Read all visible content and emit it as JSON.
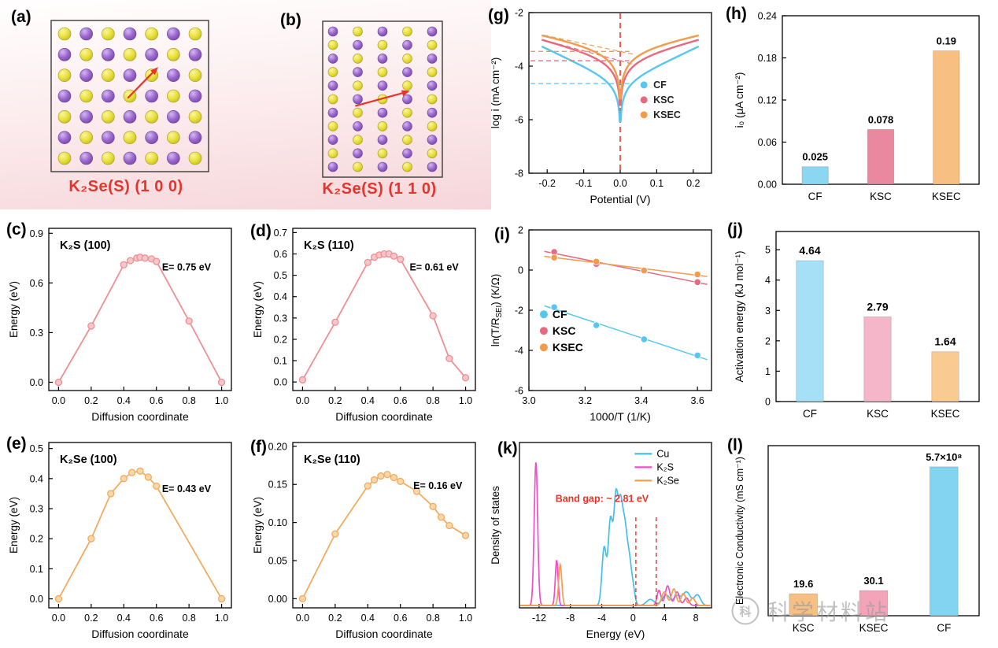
{
  "colors": {
    "arrow": "#e8332a",
    "accent_red": "#ee3326",
    "blue": "#58c7f0",
    "pink": "#e56a80",
    "orange": "#f29b4d",
    "magenta": "#f14fc3"
  },
  "watermark": {
    "text": "科学材料站",
    "logo_char": "科"
  },
  "panels": {
    "a": {
      "tag": "(a)",
      "caption": "K₂Se(S) (1 0 0)",
      "lattice": {
        "rows": 7,
        "cols": 7,
        "corner": "yellow",
        "arrow": [
          3.1,
          2.9,
          1.6,
          4.3
        ]
      }
    },
    "b": {
      "tag": "(b)",
      "caption": "K₂Se(S) (1 1 0)",
      "lattice": {
        "rows": 11,
        "cols": 5,
        "corner": "purple",
        "arrow": [
          5.5,
          0.9,
          4.4,
          3.1
        ]
      }
    },
    "c": {
      "tag": "(c)"
    },
    "d": {
      "tag": "(d)"
    },
    "e": {
      "tag": "(e)"
    },
    "f": {
      "tag": "(f)"
    },
    "g": {
      "tag": "(g)"
    },
    "h": {
      "tag": "(h)"
    },
    "i": {
      "tag": "(i)"
    },
    "j": {
      "tag": "(j)"
    },
    "k": {
      "tag": "(k)"
    },
    "l": {
      "tag": "(l)"
    }
  },
  "chart_data": [
    {
      "id": "c",
      "type": "line",
      "title": "K₂S (100)",
      "annotation": "E= 0.75 eV",
      "xlabel": "Diffusion coordinate",
      "ylabel": "Energy (eV)",
      "xlim": [
        -0.06,
        1.06
      ],
      "ylim": [
        -0.05,
        0.93
      ],
      "xticks": [
        0,
        0.2,
        0.4,
        0.6,
        0.8,
        1
      ],
      "yticks": [
        0,
        0.3,
        0.6,
        0.9
      ],
      "xfmt": 1,
      "yfmt": 1,
      "color": "#ee8f94",
      "point_fill": "#f8c6c8",
      "ann_pos": [
        0.62,
        0.26
      ],
      "x": [
        0,
        0.2,
        0.4,
        0.44,
        0.48,
        0.5,
        0.53,
        0.57,
        0.6,
        0.8,
        1.0
      ],
      "y": [
        0,
        0.34,
        0.71,
        0.735,
        0.75,
        0.755,
        0.75,
        0.745,
        0.73,
        0.37,
        0.0
      ]
    },
    {
      "id": "d",
      "type": "line",
      "title": "K₂S (110)",
      "annotation": "E= 0.61 eV",
      "xlabel": "Diffusion coordinate",
      "ylabel": "Energy (eV)",
      "xlim": [
        -0.06,
        1.06
      ],
      "ylim": [
        -0.04,
        0.72
      ],
      "xticks": [
        0,
        0.2,
        0.4,
        0.6,
        0.8,
        1
      ],
      "yticks": [
        0,
        0.1,
        0.2,
        0.3,
        0.4,
        0.5,
        0.6,
        0.7
      ],
      "xfmt": 1,
      "yfmt": 1,
      "color": "#ee8f94",
      "point_fill": "#f8c6c8",
      "ann_pos": [
        0.64,
        0.26
      ],
      "x": [
        0,
        0.2,
        0.4,
        0.44,
        0.47,
        0.5,
        0.53,
        0.56,
        0.6,
        0.8,
        0.9,
        1.0
      ],
      "y": [
        0.01,
        0.28,
        0.56,
        0.585,
        0.595,
        0.6,
        0.6,
        0.59,
        0.575,
        0.31,
        0.11,
        0.02
      ]
    },
    {
      "id": "e",
      "type": "line",
      "title": "K₂Se (100)",
      "annotation": "E= 0.43 eV",
      "xlabel": "Diffusion coordinate",
      "ylabel": "Energy (eV)",
      "xlim": [
        -0.06,
        1.06
      ],
      "ylim": [
        -0.03,
        0.52
      ],
      "xticks": [
        0,
        0.2,
        0.4,
        0.6,
        0.8,
        1
      ],
      "yticks": [
        0,
        0.1,
        0.2,
        0.3,
        0.4,
        0.5
      ],
      "xfmt": 1,
      "yfmt": 1,
      "color": "#f3ab5e",
      "point_fill": "#fad7a8",
      "ann_pos": [
        0.62,
        0.3
      ],
      "x": [
        0,
        0.2,
        0.32,
        0.4,
        0.45,
        0.5,
        0.55,
        0.6,
        1.0
      ],
      "y": [
        0,
        0.2,
        0.35,
        0.4,
        0.42,
        0.425,
        0.405,
        0.375,
        0.0
      ]
    },
    {
      "id": "f",
      "type": "line",
      "title": "K₂Se (110)",
      "annotation": "E= 0.16 eV",
      "xlabel": "Diffusion coordinate",
      "ylabel": "Energy (eV)",
      "xlim": [
        -0.06,
        1.06
      ],
      "ylim": [
        -0.012,
        0.205
      ],
      "xticks": [
        0,
        0.2,
        0.4,
        0.6,
        0.8,
        1
      ],
      "yticks": [
        0,
        0.05,
        0.1,
        0.15,
        0.2
      ],
      "xfmt": 1,
      "yfmt": 2,
      "color": "#f3ab5e",
      "point_fill": "#fad7a8",
      "ann_pos": [
        0.66,
        0.28
      ],
      "x": [
        0,
        0.2,
        0.4,
        0.44,
        0.48,
        0.52,
        0.56,
        0.6,
        0.7,
        0.8,
        0.85,
        0.9,
        1.0
      ],
      "y": [
        0,
        0.085,
        0.148,
        0.156,
        0.161,
        0.163,
        0.159,
        0.154,
        0.141,
        0.121,
        0.107,
        0.096,
        0.083
      ]
    },
    {
      "id": "g",
      "type": "tafel",
      "xlabel": "Potential (V)",
      "ylabel": "log i (mA cm⁻²)",
      "xlim": [
        -0.25,
        0.25
      ],
      "ylim": [
        -8,
        -2
      ],
      "xticks": [
        -0.2,
        -0.1,
        0,
        0.1,
        0.2
      ],
      "yticks": [
        -8,
        -6,
        -4,
        -2
      ],
      "xfmt": 1,
      "yfmt": 0,
      "zero_line_color": "#ee3326",
      "legend_pos": [
        0.63,
        0.47
      ],
      "series": [
        {
          "name": "CF",
          "color": "#58c7f0",
          "log_i0": -4.65,
          "slope": 0.155,
          "diag": false
        },
        {
          "name": "KSC",
          "color": "#e56a80",
          "log_i0": -3.8,
          "slope": 0.27,
          "diag": true
        },
        {
          "name": "KSEC",
          "color": "#f29b4d",
          "log_i0": -3.45,
          "slope": 0.345,
          "diag": true
        }
      ]
    },
    {
      "id": "h",
      "type": "bar",
      "ylabel": "i₀ (μA cm⁻²)",
      "categories": [
        "CF",
        "KSC",
        "KSEC"
      ],
      "values": [
        0.025,
        0.078,
        0.19
      ],
      "value_labels": [
        "0.025",
        "0.078",
        "0.19"
      ],
      "colors": [
        "#8bd7f2",
        "#e9889e",
        "#f8bf82"
      ],
      "ylim": [
        0,
        0.24
      ],
      "yticks": [
        0,
        0.06,
        0.12,
        0.18,
        0.24
      ],
      "yfmt": 2
    },
    {
      "id": "i",
      "type": "scatter",
      "xlabel": "1000/T (1/K)",
      "ylabel": "ln(T/R_{SEI}) (K/Ω)",
      "xlim": [
        3.0,
        3.65
      ],
      "ylim": [
        -6,
        2
      ],
      "xticks": [
        3.0,
        3.2,
        3.4,
        3.6
      ],
      "yticks": [
        -6,
        -4,
        -2,
        0,
        2
      ],
      "xfmt": 1,
      "yfmt": 0,
      "legend_pos": [
        0.06,
        0.55
      ],
      "series": [
        {
          "name": "CF",
          "color": "#58c7f0",
          "points": [
            [
              3.09,
              -1.85
            ],
            [
              3.24,
              -2.75
            ],
            [
              3.41,
              -3.45
            ],
            [
              3.6,
              -4.25
            ]
          ]
        },
        {
          "name": "KSC",
          "color": "#e56a80",
          "points": [
            [
              3.09,
              0.9
            ],
            [
              3.24,
              0.3
            ],
            [
              3.41,
              -0.05
            ],
            [
              3.6,
              -0.6
            ]
          ]
        },
        {
          "name": "KSEC",
          "color": "#f29b4d",
          "points": [
            [
              3.09,
              0.62
            ],
            [
              3.24,
              0.42
            ],
            [
              3.41,
              -0.02
            ],
            [
              3.6,
              -0.22
            ]
          ]
        }
      ]
    },
    {
      "id": "j",
      "type": "bar",
      "ylabel": "Activation energy (kJ mol⁻¹)",
      "categories": [
        "CF",
        "KSC",
        "KSEC"
      ],
      "values": [
        4.64,
        2.79,
        1.64
      ],
      "value_labels": [
        "4.64",
        "2.79",
        "1.64"
      ],
      "value_size": 14,
      "colors": [
        "#a5e0f6",
        "#f5b6c9",
        "#f9cb92"
      ],
      "ylim": [
        0,
        5.6
      ],
      "yticks": [
        0,
        1,
        2,
        3,
        4,
        5
      ],
      "yfmt": 0
    },
    {
      "id": "k",
      "type": "dos",
      "xlabel": "Energy (eV)",
      "ylabel": "Density of states",
      "xlim": [
        -14.5,
        10
      ],
      "ylim": [
        0,
        1.05
      ],
      "xticks": [
        -12,
        -8,
        -4,
        0,
        4,
        8
      ],
      "xfmt": 0,
      "annotation": "Band gap: ~ 2.81 eV",
      "annotation_color": "#ee3326",
      "gap_lines": [
        0.35,
        2.95
      ],
      "legend_pos": [
        0.6,
        0.04
      ],
      "series": [
        {
          "name": "Cu",
          "color": "#45bfe9",
          "peaks": [
            [
              -3.7,
              0.38,
              0.28
            ],
            [
              -2.9,
              0.55,
              0.28
            ],
            [
              -2.2,
              0.68,
              0.28
            ],
            [
              -1.6,
              0.6,
              0.28
            ],
            [
              -1.05,
              0.45,
              0.28
            ],
            [
              -0.5,
              0.28,
              0.28
            ],
            [
              0.0,
              0.1,
              0.25
            ],
            [
              2.2,
              0.04,
              0.5
            ],
            [
              4.2,
              0.07,
              0.5
            ],
            [
              5.6,
              0.06,
              0.4
            ],
            [
              6.8,
              0.09,
              0.5
            ],
            [
              8.2,
              0.07,
              0.4
            ]
          ]
        },
        {
          "name": "K₂S",
          "color": "#f14fc3",
          "peaks": [
            [
              -12.4,
              0.95,
              0.22
            ],
            [
              -9.75,
              0.3,
              0.18
            ],
            [
              3.3,
              0.1,
              0.25
            ],
            [
              4.4,
              0.13,
              0.3
            ],
            [
              5.6,
              0.09,
              0.3
            ],
            [
              6.8,
              0.05,
              0.3
            ]
          ]
        },
        {
          "name": "K₂Se",
          "color": "#f0a050",
          "peaks": [
            [
              -9.3,
              0.27,
              0.2
            ],
            [
              4.0,
              0.09,
              0.35
            ],
            [
              5.2,
              0.11,
              0.3
            ],
            [
              6.4,
              0.08,
              0.3
            ],
            [
              7.6,
              0.05,
              0.3
            ]
          ]
        }
      ]
    },
    {
      "id": "l",
      "type": "bar",
      "ylabel": "Electronic Conductivity (mS cm⁻¹)",
      "categories": [
        "KSC",
        "KSEC",
        "CF"
      ],
      "values": [
        19.6,
        30.1,
        570000000
      ],
      "value_labels": [
        "19.6",
        "30.1",
        "5.7×10⁸"
      ],
      "colors": [
        "#f8bf82",
        "#f3a4b8",
        "#82d4f1"
      ],
      "scale": "log",
      "log_max": 10,
      "yfmt": 0
    }
  ]
}
